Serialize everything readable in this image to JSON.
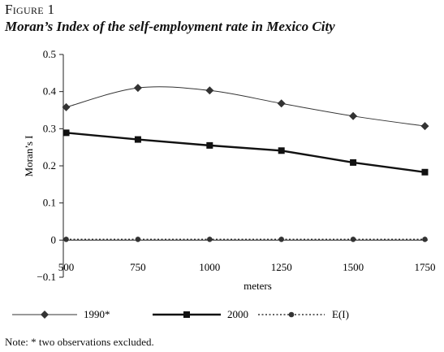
{
  "figure": {
    "label": "Figure 1",
    "title": "Moran’s Index of the self-employment rate in Mexico City"
  },
  "chart_data": {
    "type": "line",
    "title": "Moran’s Index of the self-employment rate in Mexico City",
    "xlabel": "meters",
    "ylabel": "Moran’s I",
    "x": [
      500,
      750,
      1000,
      1250,
      1500,
      1750
    ],
    "xticks": [
      "500",
      "750",
      "1000",
      "1250",
      "1500",
      "1750"
    ],
    "ylim": [
      -0.1,
      0.5
    ],
    "yticks": [
      "−0.1",
      "0",
      "0.1",
      "0.2",
      "0.3",
      "0.4",
      "0.5"
    ],
    "yticks_values": [
      -0.1,
      0,
      0.1,
      0.2,
      0.3,
      0.4,
      0.5
    ],
    "grid": false,
    "legend_position": "bottom",
    "series": [
      {
        "name": "1990*",
        "values": [
          0.358,
          0.41,
          0.403,
          0.368,
          0.334,
          0.307
        ],
        "marker": "diamond",
        "style": "thin-solid",
        "color": "#333333"
      },
      {
        "name": "2000",
        "values": [
          0.289,
          0.271,
          0.255,
          0.241,
          0.209,
          0.183
        ],
        "marker": "square",
        "style": "thick-solid",
        "color": "#111111"
      },
      {
        "name": "E(I)",
        "values": [
          0.002,
          0.002,
          0.002,
          0.002,
          0.002,
          0.002
        ],
        "marker": "circle",
        "style": "dotted",
        "color": "#333333"
      }
    ]
  },
  "note": "Note: * two observations excluded."
}
